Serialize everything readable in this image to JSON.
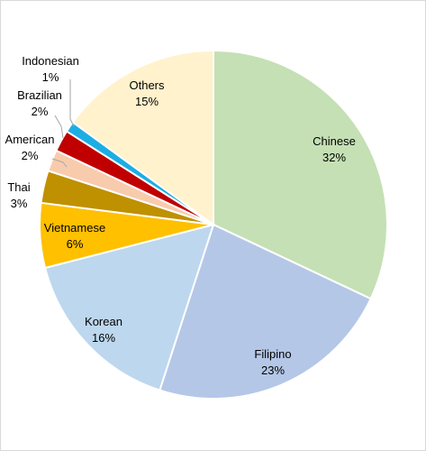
{
  "chart_data": {
    "type": "pie",
    "title": "",
    "legend": "none",
    "start_angle_deg": 0,
    "direction": "clockwise",
    "slices": [
      {
        "name": "Chinese",
        "value": 32,
        "label": "32%",
        "color": "#c5e0b4"
      },
      {
        "name": "Filipino",
        "value": 23,
        "label": "23%",
        "color": "#b4c7e7"
      },
      {
        "name": "Korean",
        "value": 16,
        "label": "16%",
        "color": "#bdd7ee"
      },
      {
        "name": "Vietnamese",
        "value": 6,
        "label": "6%",
        "color": "#ffc000"
      },
      {
        "name": "Thai",
        "value": 3,
        "label": "3%",
        "color": "#bf9000"
      },
      {
        "name": "American",
        "value": 2,
        "label": "2%",
        "color": "#f8cbad"
      },
      {
        "name": "Brazilian",
        "value": 2,
        "label": "2%",
        "color": "#c00000"
      },
      {
        "name": "Indonesian",
        "value": 1,
        "label": "1%",
        "color": "#1cade4"
      },
      {
        "name": "Others",
        "value": 15,
        "label": "15%",
        "color": "#fff2cc"
      }
    ]
  }
}
